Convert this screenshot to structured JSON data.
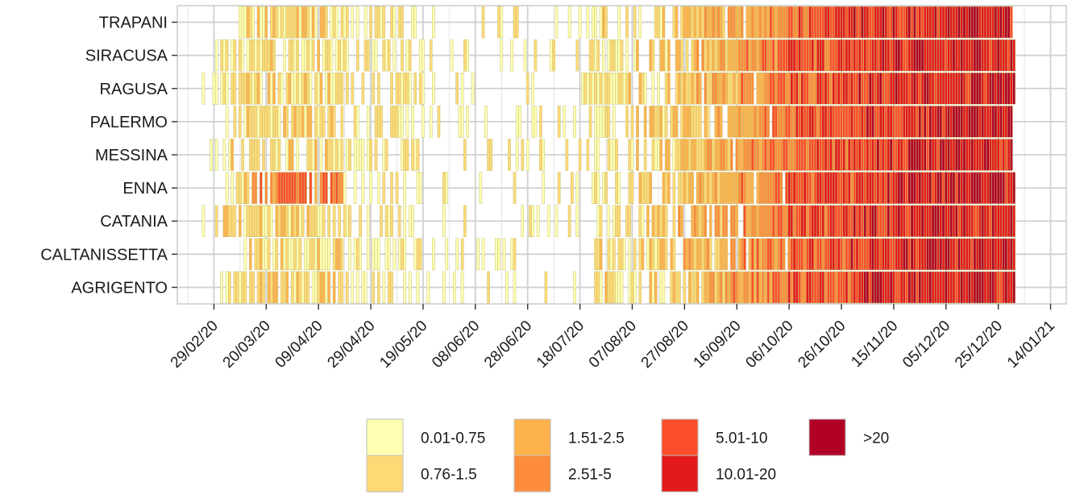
{
  "chart_data": {
    "type": "heatmap",
    "title": "",
    "xlabel": "",
    "ylabel": "",
    "x_range": [
      "2020-02-15",
      "2021-01-20"
    ],
    "x_ticks": [
      "29/02/20",
      "20/03/20",
      "09/04/20",
      "29/04/20",
      "19/05/20",
      "08/06/20",
      "28/06/20",
      "18/07/20",
      "07/08/20",
      "27/08/20",
      "16/09/20",
      "06/10/20",
      "26/10/20",
      "15/11/20",
      "05/12/20",
      "25/12/20",
      "14/01/21"
    ],
    "categories": [
      "TRAPANI",
      "SIRACUSA",
      "RAGUSA",
      "PALERMO",
      "MESSINA",
      "ENNA",
      "CATANIA",
      "CALTANISSETTA",
      "AGRIGENTO"
    ],
    "legend": {
      "position": "bottom",
      "items": [
        {
          "label": "0.01-0.75",
          "color": "#FFFFB2"
        },
        {
          "label": "0.76-1.5",
          "color": "#FED976"
        },
        {
          "label": "1.51-2.5",
          "color": "#FEB24C"
        },
        {
          "label": "2.51-5",
          "color": "#FD8D3C"
        },
        {
          "label": "5.01-10",
          "color": "#FC4E2A"
        },
        {
          "label": "10.01-20",
          "color": "#E31A1C"
        },
        {
          "label": ">20",
          "color": "#B10026"
        }
      ]
    },
    "grid": true,
    "date_start": "24/02/20",
    "date_end": "31/12/20",
    "series": [
      {
        "name": "TRAPANI",
        "first_case": "10/03/20",
        "active_until": "30/12/20"
      },
      {
        "name": "SIRACUSA",
        "first_case": "01/03/20",
        "active_until": "31/12/20"
      },
      {
        "name": "RAGUSA",
        "first_case": "25/02/20",
        "active_until": "31/12/20"
      },
      {
        "name": "PALERMO",
        "first_case": "05/03/20",
        "active_until": "30/12/20"
      },
      {
        "name": "MESSINA",
        "first_case": "28/02/20",
        "active_until": "30/12/20"
      },
      {
        "name": "ENNA",
        "first_case": "05/03/20",
        "active_until": "31/12/20"
      },
      {
        "name": "CATANIA",
        "first_case": "25/02/20",
        "active_until": "31/12/20"
      },
      {
        "name": "CALTANISSETTA",
        "first_case": "12/03/20",
        "active_until": "31/12/20"
      },
      {
        "name": "AGRIGENTO",
        "first_case": "03/03/20",
        "active_until": "31/12/20"
      }
    ]
  }
}
